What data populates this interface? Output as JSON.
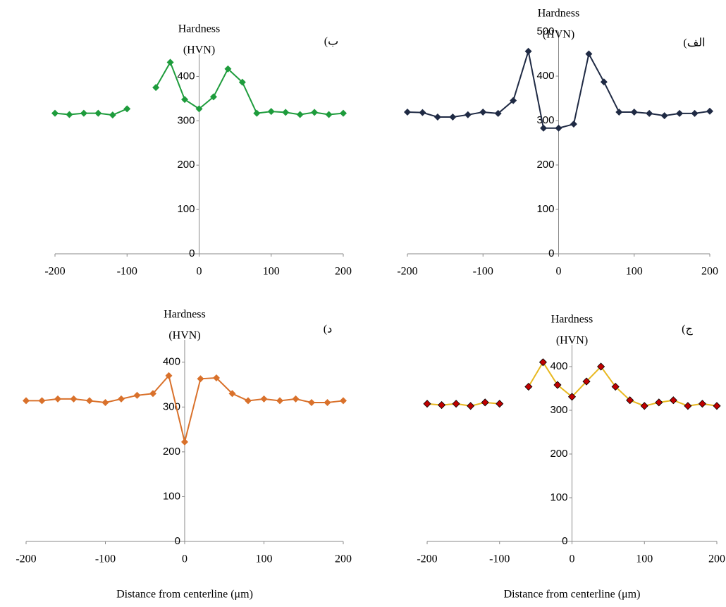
{
  "chart_data": [
    {
      "type": "line",
      "label": "ب)",
      "ylabel": [
        "Hardness",
        "(HVN)"
      ],
      "x": [
        -200,
        -180,
        -160,
        -140,
        -120,
        -100,
        -80,
        -60,
        -40,
        -20,
        0,
        20,
        40,
        60,
        80,
        100,
        120,
        140,
        160,
        180,
        200
      ],
      "series": [
        {
          "color": "#1e9c3c",
          "marker_fill": "#1e9c3c",
          "values": [
            317,
            314,
            317,
            317,
            313,
            327,
            null,
            375,
            432,
            348,
            327,
            354,
            417,
            387,
            317,
            321,
            319,
            314,
            319,
            314,
            317
          ]
        }
      ],
      "xlim": [
        -200,
        200
      ],
      "xticks": [
        -200,
        -100,
        0,
        100,
        200
      ],
      "ylim": [
        0,
        450
      ],
      "yticks": [
        0,
        100,
        200,
        300,
        400
      ]
    },
    {
      "type": "line",
      "label": "الف)",
      "ylabel": [
        "Hardness",
        "(HVN)"
      ],
      "x": [
        -200,
        -180,
        -160,
        -140,
        -120,
        -100,
        -80,
        -60,
        -40,
        -20,
        0,
        20,
        40,
        60,
        80,
        100,
        120,
        140,
        160,
        180,
        200
      ],
      "series": [
        {
          "color": "#1f2a44",
          "marker_fill": "#1f2a44",
          "values": [
            319,
            318,
            308,
            308,
            313,
            319,
            316,
            345,
            456,
            283,
            283,
            292,
            450,
            387,
            319,
            319,
            316,
            311,
            316,
            316,
            321
          ]
        }
      ],
      "xlim": [
        -200,
        200
      ],
      "xticks": [
        -200,
        -100,
        0,
        100,
        200
      ],
      "ylim": [
        0,
        500
      ],
      "yticks": [
        0,
        100,
        200,
        300,
        400,
        500
      ]
    },
    {
      "type": "line",
      "label": "د)",
      "ylabel": [
        "Hardness",
        "(HVN)"
      ],
      "xlabel": "Distance from centerline (μm)",
      "x": [
        -200,
        -180,
        -160,
        -140,
        -120,
        -100,
        -80,
        -60,
        -40,
        -20,
        0,
        20,
        40,
        60,
        80,
        100,
        120,
        140,
        160,
        180,
        200
      ],
      "series": [
        {
          "color": "#d9712b",
          "marker_fill": "#d9712b",
          "values": [
            314,
            314,
            318,
            318,
            314,
            310,
            318,
            326,
            330,
            370,
            222,
            363,
            365,
            330,
            314,
            318,
            314,
            318,
            310,
            310,
            314
          ]
        }
      ],
      "xlim": [
        -200,
        200
      ],
      "xticks": [
        -200,
        -100,
        0,
        100,
        200
      ],
      "ylim": [
        0,
        450
      ],
      "yticks": [
        0,
        100,
        200,
        300,
        400
      ]
    },
    {
      "type": "line",
      "label": "ج)",
      "ylabel": [
        "Hardness",
        "(HVN)"
      ],
      "xlabel": "Distance from centerline (μm)",
      "x": [
        -200,
        -180,
        -160,
        -140,
        -120,
        -100,
        -80,
        -60,
        -40,
        -20,
        0,
        20,
        40,
        60,
        80,
        100,
        120,
        140,
        160,
        180,
        200
      ],
      "series": [
        {
          "color": "#e8b820",
          "marker_fill": "#c00000",
          "values": [
            315,
            312,
            315,
            310,
            318,
            315,
            null,
            354,
            410,
            358,
            331,
            366,
            400,
            354,
            323,
            310,
            318,
            323,
            310,
            315,
            310
          ]
        }
      ],
      "xlim": [
        -200,
        200
      ],
      "xticks": [
        -200,
        -100,
        0,
        100,
        200
      ],
      "ylim": [
        0,
        450
      ],
      "yticks": [
        0,
        100,
        200,
        300,
        400
      ]
    }
  ]
}
